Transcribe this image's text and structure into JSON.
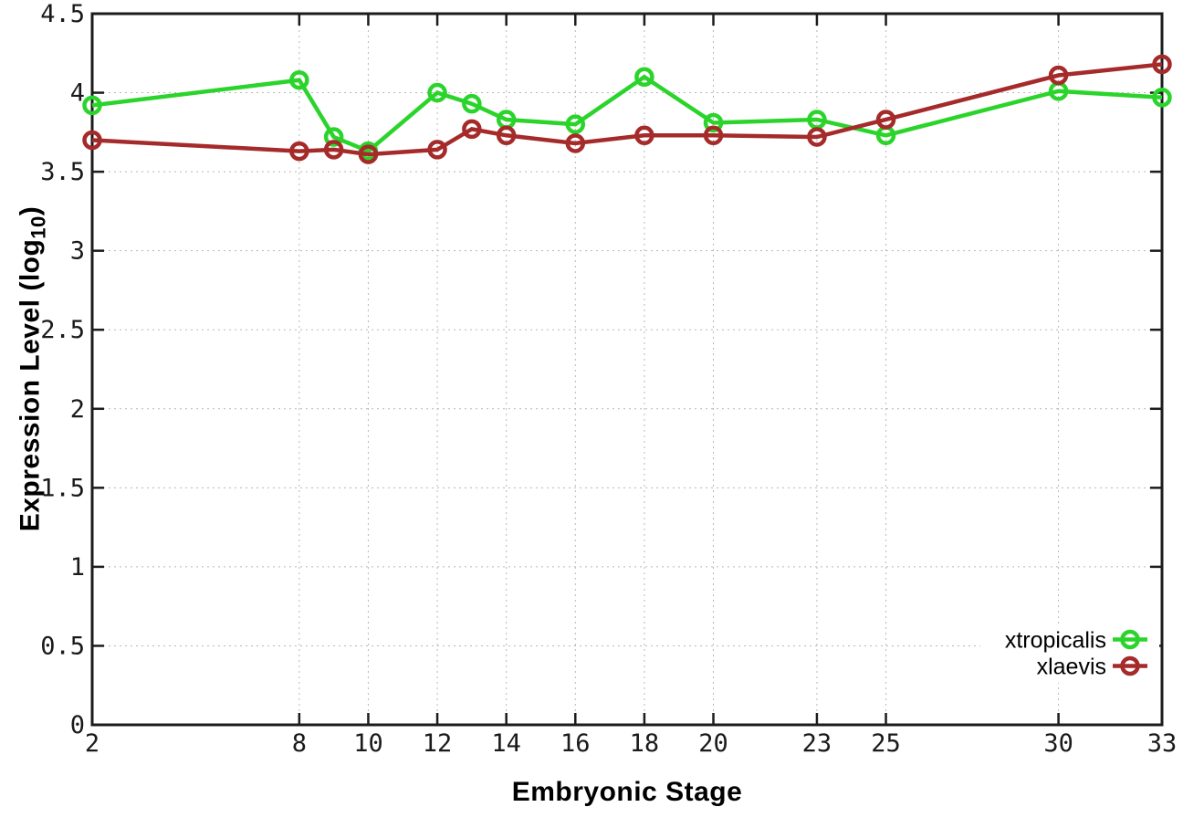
{
  "colors": {
    "background": "#ffffff",
    "axis": "#1c1c1c",
    "grid": "#b8b8b8",
    "tick_text": "#1a1a1a",
    "label_text": "#000000"
  },
  "chart_data": {
    "type": "line",
    "title": "",
    "xlabel": "Embryonic Stage",
    "ylabel": {
      "main": "Expression Level (log",
      "sub": "10",
      "close": ")"
    },
    "xlim": [
      2,
      33
    ],
    "ylim": [
      0,
      4.5
    ],
    "grid": true,
    "legend_position": "bottom-right",
    "marker": "open-circle",
    "xticks": {
      "values": [
        2,
        8,
        10,
        12,
        14,
        16,
        18,
        20,
        23,
        25,
        30,
        33
      ],
      "labels": [
        "2",
        "8",
        "10",
        "12",
        "14",
        "16",
        "18",
        "20",
        "23",
        "25",
        "30",
        "33"
      ]
    },
    "yticks": {
      "values": [
        0,
        0.5,
        1,
        1.5,
        2,
        2.5,
        3,
        3.5,
        4,
        4.5
      ],
      "labels": [
        "0",
        "0.5",
        "1",
        "1.5",
        "2",
        "2.5",
        "3",
        "3.5",
        "4",
        "4.5"
      ]
    },
    "x": [
      2,
      8,
      9,
      10,
      12,
      13,
      14,
      16,
      18,
      20,
      23,
      25,
      30,
      33
    ],
    "series": [
      {
        "name": "xtropicalis",
        "color": "#2bd42b",
        "values": [
          3.92,
          4.08,
          3.72,
          3.63,
          4.0,
          3.93,
          3.83,
          3.8,
          4.1,
          3.81,
          3.83,
          3.73,
          4.01,
          3.97
        ]
      },
      {
        "name": "xlaevis",
        "color": "#a52a2a",
        "values": [
          3.7,
          3.63,
          3.64,
          3.61,
          3.64,
          3.77,
          3.73,
          3.68,
          3.73,
          3.73,
          3.72,
          3.83,
          4.11,
          4.18
        ]
      }
    ]
  }
}
